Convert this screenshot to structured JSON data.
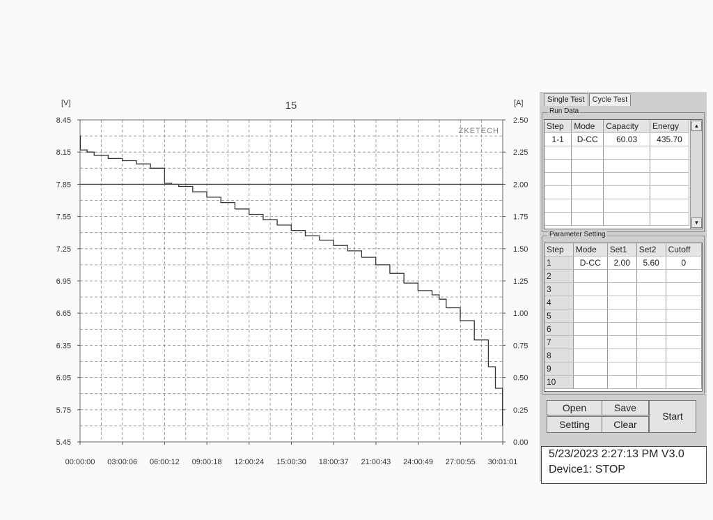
{
  "chart_data": {
    "type": "line",
    "title": "15",
    "logo": "ZKETECH",
    "ylabel_left": "[V]",
    "ylabel_right": "[A]",
    "left_ticks": [
      "8.45",
      "8.15",
      "7.85",
      "7.55",
      "7.25",
      "6.95",
      "6.65",
      "6.35",
      "6.05",
      "5.75",
      "5.45"
    ],
    "right_ticks": [
      "2.50",
      "2.25",
      "2.00",
      "1.75",
      "1.50",
      "1.25",
      "1.00",
      "0.75",
      "0.50",
      "0.25",
      "0.00"
    ],
    "x_ticks": [
      "00:00:00",
      "03:00:06",
      "06:00:12",
      "09:00:18",
      "12:00:24",
      "15:00:30",
      "18:00:37",
      "21:00:43",
      "24:00:49",
      "27:00:55",
      "30:01:01"
    ],
    "ylim_left": [
      5.45,
      8.45
    ],
    "ylim_right": [
      0,
      2.5
    ],
    "xlim_hours": [
      0,
      30.017
    ],
    "grid": true,
    "series": [
      {
        "axis": "left",
        "points": [
          [
            0,
            8.3
          ],
          [
            0.02,
            8.17
          ],
          [
            0.5,
            8.15
          ],
          [
            1,
            8.12
          ],
          [
            2,
            8.09
          ],
          [
            3,
            8.07
          ],
          [
            4,
            8.04
          ],
          [
            5,
            8.0
          ],
          [
            6,
            7.86
          ],
          [
            6.5,
            7.85
          ],
          [
            7,
            7.83
          ],
          [
            8,
            7.78
          ],
          [
            9,
            7.73
          ],
          [
            10,
            7.68
          ],
          [
            11,
            7.62
          ],
          [
            12,
            7.57
          ],
          [
            13,
            7.52
          ],
          [
            14,
            7.47
          ],
          [
            15,
            7.42
          ],
          [
            16,
            7.37
          ],
          [
            17,
            7.33
          ],
          [
            18,
            7.28
          ],
          [
            19,
            7.23
          ],
          [
            20,
            7.17
          ],
          [
            21,
            7.1
          ],
          [
            22,
            7.02
          ],
          [
            23,
            6.93
          ],
          [
            24,
            6.86
          ],
          [
            25,
            6.82
          ],
          [
            25.5,
            6.78
          ],
          [
            26,
            6.7
          ],
          [
            27,
            6.58
          ],
          [
            28,
            6.4
          ],
          [
            29,
            6.15
          ],
          [
            29.5,
            5.95
          ],
          [
            30,
            5.6
          ]
        ]
      },
      {
        "axis": "right",
        "points": [
          [
            0,
            2.0
          ],
          [
            30.017,
            2.0
          ]
        ]
      }
    ]
  },
  "tabs": [
    "Single Test",
    "Cycle Test"
  ],
  "run_data": {
    "label": "Run Data",
    "headers": [
      "Step",
      "Mode",
      "Capacity",
      "Energy"
    ],
    "rows": [
      [
        "1-1",
        "D-CC",
        "60.03",
        "435.70"
      ]
    ]
  },
  "param": {
    "label": "Parameter Setting",
    "headers": [
      "Step",
      "Mode",
      "Set1",
      "Set2",
      "Cutoff"
    ],
    "rows": [
      [
        "1",
        "D-CC",
        "2.00",
        "5.60",
        "0"
      ],
      [
        "2",
        "",
        "",
        "",
        ""
      ],
      [
        "3",
        "",
        "",
        "",
        ""
      ],
      [
        "4",
        "",
        "",
        "",
        ""
      ],
      [
        "5",
        "",
        "",
        "",
        ""
      ],
      [
        "6",
        "",
        "",
        "",
        ""
      ],
      [
        "7",
        "",
        "",
        "",
        ""
      ],
      [
        "8",
        "",
        "",
        "",
        ""
      ],
      [
        "9",
        "",
        "",
        "",
        ""
      ],
      [
        "10",
        "",
        "",
        "",
        ""
      ]
    ]
  },
  "buttons": {
    "open": "Open",
    "save": "Save",
    "setting": "Setting",
    "clear": "Clear",
    "start": "Start"
  },
  "status": {
    "datetime": "5/23/2023 2:27:13 PM  V3.0",
    "device": "Device1: STOP"
  }
}
